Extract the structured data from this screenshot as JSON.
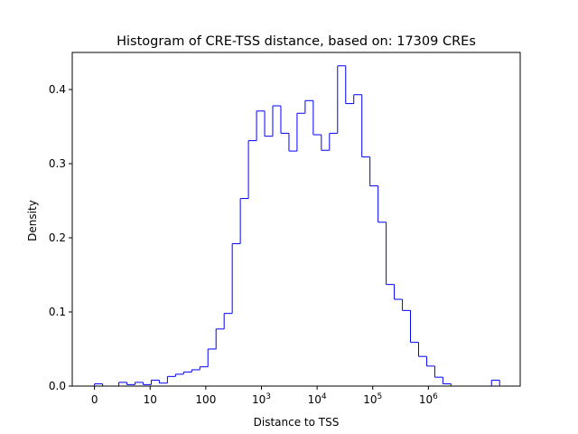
{
  "chart_data": {
    "type": "bar",
    "histtype": "step",
    "title": "Histogram of CRE-TSS distance, based on: 17309 CREs",
    "xlabel": "Distance to TSS",
    "ylabel": "Density",
    "color": "#0000ff",
    "x_scale": "log10(distance + 1)",
    "xlim": [
      -0.4,
      7.65
    ],
    "ylim": [
      0,
      0.45
    ],
    "grid": false,
    "xticks": [
      {
        "value": 0,
        "label": "0"
      },
      {
        "value": 1,
        "label": "10"
      },
      {
        "value": 2,
        "label": "100"
      },
      {
        "value": 3,
        "label": "10",
        "sup": "3"
      },
      {
        "value": 4,
        "label": "10",
        "sup": "4"
      },
      {
        "value": 5,
        "label": "10",
        "sup": "5"
      },
      {
        "value": 6,
        "label": "10",
        "sup": "6"
      }
    ],
    "yticks": [
      0.0,
      0.1,
      0.2,
      0.3,
      0.4
    ],
    "ytick_labels": [
      "0.0",
      "0.1",
      "0.2",
      "0.3",
      "0.4"
    ],
    "bin_edges": [
      0,
      0.1456,
      0.2912,
      0.4368,
      0.5824,
      0.728,
      0.8736,
      1.0192,
      1.1648,
      1.3104,
      1.456,
      1.6016,
      1.7472,
      1.8928,
      2.0384,
      2.184,
      2.3296,
      2.4752,
      2.6208,
      2.7664,
      2.912,
      3.0576,
      3.2032,
      3.3488,
      3.4944,
      3.64,
      3.7856,
      3.9312,
      4.0768,
      4.2224,
      4.368,
      4.5136,
      4.6592,
      4.8048,
      4.9504,
      5.096,
      5.2416,
      5.3872,
      5.5328,
      5.6784,
      5.824,
      5.9696,
      6.1152,
      6.2608,
      6.4064,
      6.552,
      6.6976,
      6.8432,
      6.9888,
      7.1344,
      7.28
    ],
    "densities": [
      0.003,
      0.0,
      0.0,
      0.005,
      0.002,
      0.005,
      0.002,
      0.008,
      0.004,
      0.013,
      0.016,
      0.019,
      0.022,
      0.026,
      0.05,
      0.077,
      0.098,
      0.192,
      0.253,
      0.331,
      0.371,
      0.337,
      0.378,
      0.341,
      0.317,
      0.368,
      0.385,
      0.339,
      0.318,
      0.341,
      0.432,
      0.381,
      0.393,
      0.309,
      0.27,
      0.221,
      0.137,
      0.117,
      0.102,
      0.059,
      0.04,
      0.027,
      0.012,
      0.003,
      0.0,
      0.0,
      0.0,
      0.0,
      0.0,
      0.008
    ]
  }
}
